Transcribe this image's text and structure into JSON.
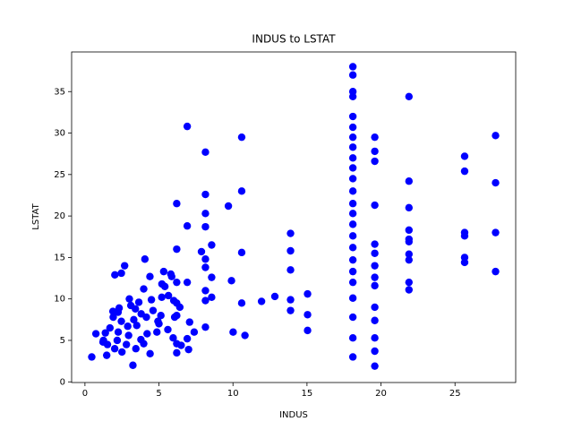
{
  "chart_data": {
    "type": "scatter",
    "title": "INDUS to LSTAT",
    "x_label": "INDUS",
    "y_label": "LSTAT",
    "color": "#0000ff",
    "x": [
      0.46,
      0.74,
      1.22,
      1.25,
      1.38,
      1.47,
      1.52,
      1.69,
      1.89,
      1.91,
      2.01,
      2.02,
      2.18,
      2.24,
      2.25,
      2.31,
      2.46,
      2.46,
      2.68,
      2.89,
      2.95,
      3.24,
      3.41,
      3.44,
      3.64,
      3.78,
      3.97,
      3.97,
      4.05,
      4.15,
      4.39,
      4.49,
      4.86,
      4.93,
      5.13,
      5.19,
      5.32,
      5.64,
      5.86,
      5.96,
      6.06,
      6.2,
      6.2,
      6.2,
      6.2,
      6.2,
      6.2,
      6.2,
      6.41,
      6.91,
      6.91,
      6.91,
      6.91,
      7.07,
      7.38,
      7.87,
      8.14,
      8.14,
      8.14,
      8.14,
      8.14,
      8.14,
      8.14,
      8.14,
      8.14,
      8.56,
      8.56,
      8.56,
      9.69,
      9.9,
      10.01,
      10.59,
      10.59,
      10.59,
      10.59,
      10.81,
      11.93,
      12.83,
      13.89,
      13.89,
      13.89,
      13.89,
      13.89,
      15.04,
      15.04,
      15.04,
      18.1,
      18.1,
      18.1,
      18.1,
      18.1,
      18.1,
      18.1,
      18.1,
      18.1,
      18.1,
      18.1,
      18.1,
      18.1,
      18.1,
      18.1,
      18.1,
      18.1,
      18.1,
      18.1,
      18.1,
      18.1,
      18.1,
      18.1,
      18.1,
      19.58,
      19.58,
      19.58,
      19.58,
      19.58,
      19.58,
      19.58,
      19.58,
      19.58,
      19.58,
      19.58,
      19.58,
      19.58,
      19.58,
      21.89,
      21.89,
      21.89,
      21.89,
      21.89,
      21.89,
      21.89,
      21.89,
      21.89,
      21.89,
      25.65,
      25.65,
      25.65,
      25.65,
      25.65,
      25.65,
      27.74,
      27.74,
      27.74,
      27.74,
      2.8,
      3.1,
      3.5,
      4.2,
      4.6,
      5.0,
      5.4,
      5.6,
      6.0,
      6.5,
      7.0,
      2.5,
      3.0,
      3.3,
      3.8,
      4.4,
      5.2,
      5.8
    ],
    "values": [
      3.0,
      5.8,
      4.8,
      5.0,
      5.9,
      3.2,
      4.5,
      6.5,
      8.5,
      7.8,
      4.0,
      12.9,
      5.0,
      8.4,
      6.0,
      8.9,
      7.3,
      13.1,
      14.0,
      6.7,
      5.6,
      2.0,
      8.8,
      4.0,
      9.6,
      5.1,
      4.6,
      11.2,
      14.8,
      7.8,
      12.7,
      9.9,
      6.0,
      7.3,
      8.0,
      10.2,
      13.3,
      10.4,
      12.7,
      5.3,
      7.8,
      3.5,
      4.6,
      8.0,
      9.5,
      12.0,
      16.0,
      21.5,
      9.0,
      5.2,
      12.0,
      18.8,
      30.8,
      7.2,
      6.0,
      15.7,
      9.8,
      13.8,
      18.7,
      20.3,
      22.6,
      27.7,
      6.6,
      11.0,
      14.8,
      10.2,
      12.6,
      16.5,
      21.2,
      12.2,
      6.0,
      15.6,
      23.0,
      29.5,
      9.5,
      5.6,
      9.7,
      10.3,
      17.9,
      15.8,
      13.5,
      9.9,
      8.6,
      10.6,
      8.1,
      6.2,
      3.0,
      5.3,
      7.8,
      10.1,
      12.0,
      13.3,
      14.7,
      16.2,
      17.6,
      19.0,
      20.3,
      21.5,
      23.0,
      24.5,
      25.8,
      27.0,
      28.3,
      29.5,
      30.7,
      32.0,
      34.4,
      35.0,
      37.0,
      38.0,
      1.9,
      3.7,
      5.3,
      7.4,
      9.0,
      11.6,
      12.6,
      14.0,
      15.5,
      16.6,
      21.3,
      26.6,
      27.8,
      29.5,
      11.1,
      12.0,
      14.7,
      15.4,
      16.9,
      17.2,
      18.3,
      21.0,
      24.2,
      34.4,
      14.4,
      15.0,
      17.6,
      18.0,
      25.4,
      27.2,
      13.3,
      18.0,
      24.0,
      29.7,
      4.5,
      9.2,
      6.8,
      5.8,
      8.6,
      7.0,
      11.5,
      6.3,
      9.8,
      4.4,
      3.9,
      3.6,
      10.0,
      7.5,
      8.2,
      3.4,
      11.8,
      13.0
    ],
    "xlim": [
      -0.9,
      29.1
    ],
    "ylim": [
      -0.08,
      39.78
    ],
    "xticks": [
      0,
      5,
      10,
      15,
      20,
      25
    ],
    "yticks": [
      0,
      5,
      10,
      15,
      20,
      25,
      30,
      35
    ]
  }
}
